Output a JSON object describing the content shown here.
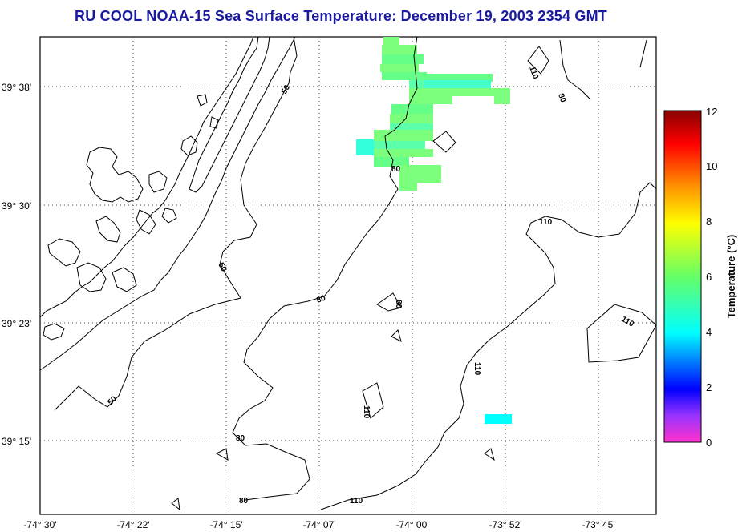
{
  "title": "RU COOL  NOAA-15  Sea Surface Temperature:  December 19, 2003 2354 GMT",
  "latitude_labels": [
    "39° 38'",
    "39° 30'",
    "39° 23'",
    "39° 15'"
  ],
  "longitude_labels": [
    "-74° 30'",
    "-74° 22'",
    "-74° 15'",
    "-74° 07'",
    "-74° 00'",
    "-73° 52'",
    "-73° 45'"
  ],
  "contour_labels": [
    "50",
    "80",
    "110"
  ],
  "colorbar": {
    "title": "Temperature (°C)",
    "ticks": [
      "12",
      "10",
      "8",
      "6",
      "4",
      "2",
      "0"
    ],
    "min": 0,
    "max": 12,
    "colors": [
      "#ff33cc",
      "#3333ff",
      "#00ffff",
      "#66ff66",
      "#ffff00",
      "#ff8800",
      "#ff0000",
      "#880000"
    ]
  },
  "sst_pixel_colors": [
    "#7cff7c",
    "#5cffaa",
    "#33ffdd",
    "#00ffff"
  ]
}
